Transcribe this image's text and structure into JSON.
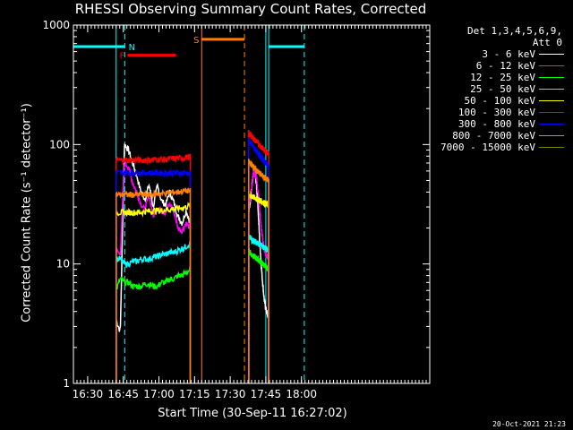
{
  "chart_data": {
    "type": "line",
    "title": "RHESSI Observing Summary Count Rates, Corrected",
    "xlabel": "Start Time (30-Sep-11 16:27:02)",
    "ylabel": "Corrected Count Rate (s⁻¹ detector⁻¹)",
    "yscale": "log",
    "ylim": [
      1,
      1000
    ],
    "xlim_minutes": [
      16.4,
      18.9
    ],
    "x_ticks": [
      {
        "label": "16:30",
        "value": 16.5
      },
      {
        "label": "16:45",
        "value": 16.75
      },
      {
        "label": "17:00",
        "value": 17.0
      },
      {
        "label": "17:15",
        "value": 17.25
      },
      {
        "label": "17:30",
        "value": 17.5
      },
      {
        "label": "17:45",
        "value": 17.75
      },
      {
        "label": "18:00",
        "value": 18.0
      }
    ],
    "y_ticks": [
      {
        "label": "1",
        "value": 1
      },
      {
        "label": "10",
        "value": 10
      },
      {
        "label": "100",
        "value": 100
      },
      {
        "label": "1000",
        "value": 1000
      }
    ],
    "legend_header": [
      "Det 1,3,4,5,6,9,",
      "Att 0"
    ],
    "legend_position": "right",
    "series": [
      {
        "name": "3 - 6 keV",
        "color": "#ffffff",
        "seg1": {
          "start": 16.7,
          "end": 17.22,
          "values": [
            3.4,
            2.7,
            100,
            90,
            70,
            55,
            40,
            35,
            46,
            30,
            45,
            34,
            31,
            40,
            33,
            25,
            22,
            28,
            22
          ]
        },
        "seg2": {
          "start": 17.63,
          "end": 17.77,
          "values": [
            27,
            38,
            55,
            60,
            35,
            15,
            8,
            5,
            4,
            3.5
          ]
        }
      },
      {
        "name": "6 - 12 keV",
        "color": "#ff00ff",
        "seg1": {
          "start": 16.7,
          "end": 17.22,
          "values": [
            13,
            12,
            70,
            65,
            48,
            40,
            32,
            28,
            38,
            25,
            30,
            28,
            27,
            32,
            28,
            20,
            19,
            22,
            20
          ]
        },
        "seg2": {
          "start": 17.63,
          "end": 17.77,
          "values": [
            30,
            40,
            60,
            55,
            35,
            20,
            14,
            12,
            11
          ]
        }
      },
      {
        "name": "12 - 25 keV",
        "color": "#00ff00",
        "seg1": {
          "start": 16.7,
          "end": 17.22,
          "values": [
            6,
            7.5,
            7,
            7,
            6.5,
            6.5,
            6.5,
            6.8,
            6.8,
            6.5,
            6.5,
            7,
            7,
            7.5,
            7.5,
            8,
            8,
            8.5,
            9
          ]
        },
        "seg2": {
          "start": 17.63,
          "end": 17.77,
          "values": [
            13,
            12,
            11.5,
            11,
            10.5,
            10,
            9.5,
            9
          ]
        }
      },
      {
        "name": "25 - 50 keV",
        "color": "#00ffff",
        "seg1": {
          "start": 16.7,
          "end": 17.22,
          "values": [
            11,
            11,
            10,
            10,
            10.5,
            10.5,
            11,
            11,
            11,
            11.5,
            11.5,
            12,
            12,
            12.5,
            12.5,
            13,
            13.5,
            14,
            15
          ]
        },
        "seg2": {
          "start": 17.63,
          "end": 17.77,
          "values": [
            17,
            16,
            15.5,
            15,
            14.5,
            14,
            13.5,
            13
          ]
        }
      },
      {
        "name": "50 - 100 keV",
        "color": "#ffff00",
        "seg1": {
          "start": 16.7,
          "end": 17.22,
          "values": [
            27,
            27,
            27,
            27,
            27,
            27,
            27,
            27.5,
            27.5,
            28,
            28,
            28,
            28.5,
            28.5,
            29,
            29,
            29.5,
            30,
            31
          ]
        },
        "seg2": {
          "start": 17.63,
          "end": 17.77,
          "values": [
            38,
            37,
            36,
            35,
            34,
            33,
            32,
            31
          ]
        }
      },
      {
        "name": "100 - 300 keV",
        "color": "#ff0000",
        "seg1": {
          "start": 16.7,
          "end": 17.22,
          "values": [
            74,
            74,
            74,
            74,
            74,
            74,
            74,
            74,
            74,
            75,
            75,
            75,
            75,
            76,
            76,
            77,
            77,
            78,
            79
          ]
        },
        "seg2": {
          "start": 17.63,
          "end": 17.77,
          "values": [
            125,
            118,
            110,
            104,
            98,
            92,
            88,
            84
          ]
        }
      },
      {
        "name": "300 - 800 keV",
        "color": "#0000ff",
        "seg1": {
          "start": 16.7,
          "end": 17.22,
          "values": [
            58,
            58,
            58,
            58,
            58,
            58,
            58,
            58,
            58,
            58,
            58,
            58,
            58,
            58,
            58,
            58,
            58,
            58,
            58
          ]
        },
        "seg2": {
          "start": 17.63,
          "end": 17.77,
          "values": [
            108,
            100,
            93,
            86,
            80,
            75,
            70,
            66
          ]
        }
      },
      {
        "name": "800 - 7000 keV",
        "color": "#ff8000",
        "seg1": {
          "start": 16.7,
          "end": 17.22,
          "values": [
            38,
            38,
            38,
            38,
            38,
            38,
            38,
            38,
            38,
            38.5,
            38.5,
            39,
            39,
            39.5,
            40,
            40,
            40.5,
            41,
            41
          ]
        },
        "seg2": {
          "start": 17.63,
          "end": 17.77,
          "values": [
            72,
            68,
            64,
            60,
            57,
            54,
            52,
            50
          ]
        }
      },
      {
        "name": "7000 - 15000 keV",
        "color": "#808000",
        "seg1": null,
        "seg2": null
      }
    ],
    "annotations": [
      {
        "label": "F",
        "color": "#ff0000",
        "x_start": 16.78,
        "x_end": 17.12,
        "y": 560
      },
      {
        "label": "N",
        "color": "#00ffff",
        "x_start": 16.4,
        "x_end": 16.76,
        "y": 660
      },
      {
        "label": "S",
        "color": "#ff8000",
        "x_start": 17.3,
        "x_end": 17.6,
        "y": 760
      }
    ],
    "markers": {
      "cyan_solid": [
        16.4,
        16.7,
        17.75,
        17.77
      ],
      "cyan_dashed": [
        16.76,
        18.02
      ],
      "orange_solid": [
        17.3
      ],
      "orange_dashed": [
        17.6
      ],
      "cyan_high_segments": [
        [
          16.4,
          16.76,
          660
        ],
        [
          17.77,
          18.02,
          660
        ]
      ]
    }
  },
  "timestamp": "20-Oct-2021 21:23"
}
